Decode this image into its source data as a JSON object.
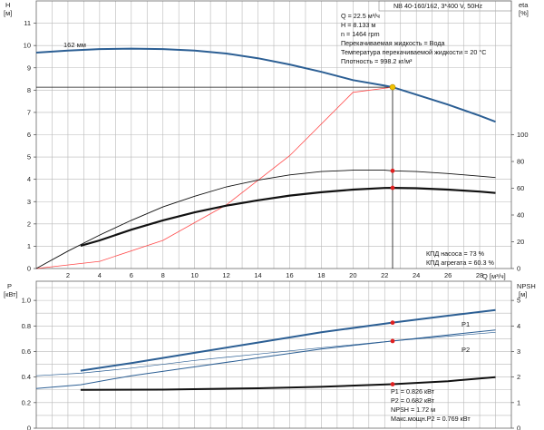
{
  "pump_model": "NB 40-160/162, 3*400 V, 50Hz",
  "top_chart": {
    "left_axis": {
      "name": "H",
      "unit": "[м]",
      "ylim": [
        0,
        12
      ],
      "ticks": [
        "0",
        "1",
        "2",
        "3",
        "4",
        "5",
        "6",
        "7",
        "8",
        "9",
        "10",
        "11"
      ]
    },
    "right_axis": {
      "name": "eta",
      "unit": "[%]",
      "ylim": [
        0,
        100
      ],
      "ticks": [
        "0",
        "20",
        "40",
        "60",
        "80",
        "100"
      ]
    },
    "x_ticks": [
      "2",
      "4",
      "6",
      "8",
      "10",
      "12",
      "14",
      "16",
      "18",
      "20",
      "22",
      "24",
      "26",
      "28"
    ],
    "curve_label": "162 мм",
    "info_lines": [
      "Q = 22.5 м³/ч",
      "H = 8.133 м",
      "n = 1464 rpm",
      "Перекачиваемая жидкость = Вода",
      "Температура перекачиваемой жидкости = 20 °C",
      "Плотность = 998.2 кг/м³"
    ],
    "efficiency_lines": [
      "КПД насоса = 73 %",
      "КПД агрегата = 60.3 %"
    ]
  },
  "bottom_chart": {
    "left_axis": {
      "name": "P",
      "unit": "[кВт]",
      "ticks": [
        "0",
        "0.2",
        "0.4",
        "0.6",
        "0.8",
        "1.0"
      ]
    },
    "right_axis": {
      "name": "NPSH",
      "unit": "[м]",
      "ticks": [
        "0",
        "1",
        "2",
        "3",
        "4",
        "5"
      ]
    },
    "x_axis_label": "Q [м³/ч]",
    "series_labels": [
      "P1",
      "P2"
    ],
    "info_lines": [
      "P1 = 0.826 кВт",
      "P2 = 0.682 кВт",
      "NPSH = 1.72 м",
      "Макс.мощн.P2 = 0.769 кВт"
    ]
  },
  "colors": {
    "head_curve": "#2c5f94",
    "power_curve": "#2c5f94",
    "system_curve": "#ff4a4a",
    "efficiency": "#111111",
    "marker": "#e02020",
    "operating_point": "#f2c200"
  },
  "chart_data": [
    {
      "type": "line",
      "title": "",
      "xlabel": "Q [м³/ч]",
      "ylabel": "H [м]",
      "xlim": [
        0,
        30
      ],
      "ylim": [
        0,
        12
      ],
      "y2label": "eta [%]",
      "y2lim": [
        0,
        100
      ],
      "grid": true,
      "series": [
        {
          "name": "162 мм",
          "axis": "left",
          "x": [
            0,
            2,
            4,
            6,
            8,
            10,
            12,
            14,
            16,
            18,
            20,
            22,
            22.5,
            24,
            26,
            28,
            29
          ],
          "values": [
            9.68,
            9.77,
            9.84,
            9.86,
            9.84,
            9.77,
            9.64,
            9.43,
            9.15,
            8.82,
            8.45,
            8.2,
            8.133,
            7.8,
            7.35,
            6.85,
            6.58
          ]
        },
        {
          "axis": "left",
          "x": [
            0,
            4,
            8,
            12,
            16,
            20,
            22.5
          ],
          "values": [
            0,
            0.32,
            1.26,
            2.85,
            5.06,
            7.9,
            8.133
          ]
        },
        {
          "axis": "right",
          "x": [
            0,
            2,
            4,
            6,
            8,
            10,
            12,
            14,
            16,
            18,
            20,
            22,
            22.5,
            24,
            26,
            28,
            29
          ],
          "values": [
            0,
            13,
            25,
            36,
            46,
            54,
            61,
            66,
            70,
            72.5,
            73.5,
            73.5,
            73,
            72.5,
            71,
            69,
            68
          ]
        },
        {
          "axis": "right",
          "x": [
            2.8,
            4,
            6,
            8,
            10,
            12,
            14,
            16,
            18,
            20,
            22,
            22.5,
            24,
            26,
            28,
            29
          ],
          "values": [
            17,
            21,
            29,
            36,
            42,
            47,
            51,
            54.5,
            57,
            59,
            60.2,
            60.3,
            60,
            59,
            57.5,
            56.5
          ]
        }
      ],
      "operating_point": {
        "x": 22.5,
        "y": 8.133
      }
    },
    {
      "type": "line",
      "title": "",
      "xlabel": "Q [м³/ч]",
      "ylabel": "P [кВт]",
      "xlim": [
        0,
        30
      ],
      "ylim": [
        0,
        1.15
      ],
      "y2label": "NPSH [м]",
      "y2lim": [
        0,
        5.75
      ],
      "grid": true,
      "series": [
        {
          "name": "P1",
          "axis": "left",
          "x": [
            2.8,
            6,
            10,
            14,
            18,
            22.5,
            26,
            29
          ],
          "values": [
            0.45,
            0.51,
            0.59,
            0.67,
            0.75,
            0.826,
            0.88,
            0.925
          ]
        },
        {
          "axis": "left",
          "x": [
            0,
            2.8,
            6,
            10,
            14,
            18,
            22.5,
            26,
            29
          ],
          "values": [
            0.41,
            0.43,
            0.47,
            0.53,
            0.58,
            0.63,
            0.682,
            0.72,
            0.75
          ]
        },
        {
          "name": "P2",
          "axis": "left",
          "x": [
            0,
            2.8,
            6,
            10,
            14,
            18,
            22.5,
            26,
            29
          ],
          "values": [
            0.31,
            0.34,
            0.41,
            0.48,
            0.55,
            0.62,
            0.682,
            0.73,
            0.769
          ]
        },
        {
          "axis": "right",
          "x": [
            2.8,
            8,
            14,
            18,
            22.5,
            26,
            29
          ],
          "values": [
            1.5,
            1.51,
            1.56,
            1.62,
            1.72,
            1.84,
            2.0
          ]
        }
      ],
      "markers": [
        {
          "x": 22.5,
          "y": 0.826
        },
        {
          "x": 22.5,
          "y": 0.682
        },
        {
          "x": 22.5,
          "y2": 1.72
        }
      ]
    }
  ]
}
